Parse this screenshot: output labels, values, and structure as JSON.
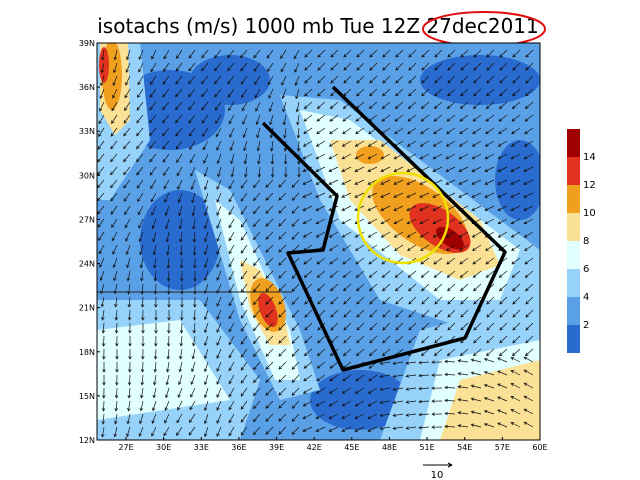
{
  "title": "isotachs (m/s) 1000 mb Tue 12Z 27dec2011",
  "lat_labels": [
    "39N",
    "36N",
    "33N",
    "30N",
    "27N",
    "24N",
    "21N",
    "18N",
    "15N",
    "12N"
  ],
  "lon_labels": [
    "27E",
    "30E",
    "33E",
    "36E",
    "39E",
    "42E",
    "45E",
    "48E",
    "51E",
    "54E",
    "57E",
    "60E"
  ],
  "colorbar": {
    "labels": [
      2,
      4,
      6,
      8,
      10,
      12,
      14
    ],
    "colors": [
      "#2a6bd0",
      "#5aa0e6",
      "#96d2fa",
      "#e1ffff",
      "#fae196",
      "#f0a01e",
      "#e0321e",
      "#a00000"
    ]
  },
  "vector_reference": "10"
}
